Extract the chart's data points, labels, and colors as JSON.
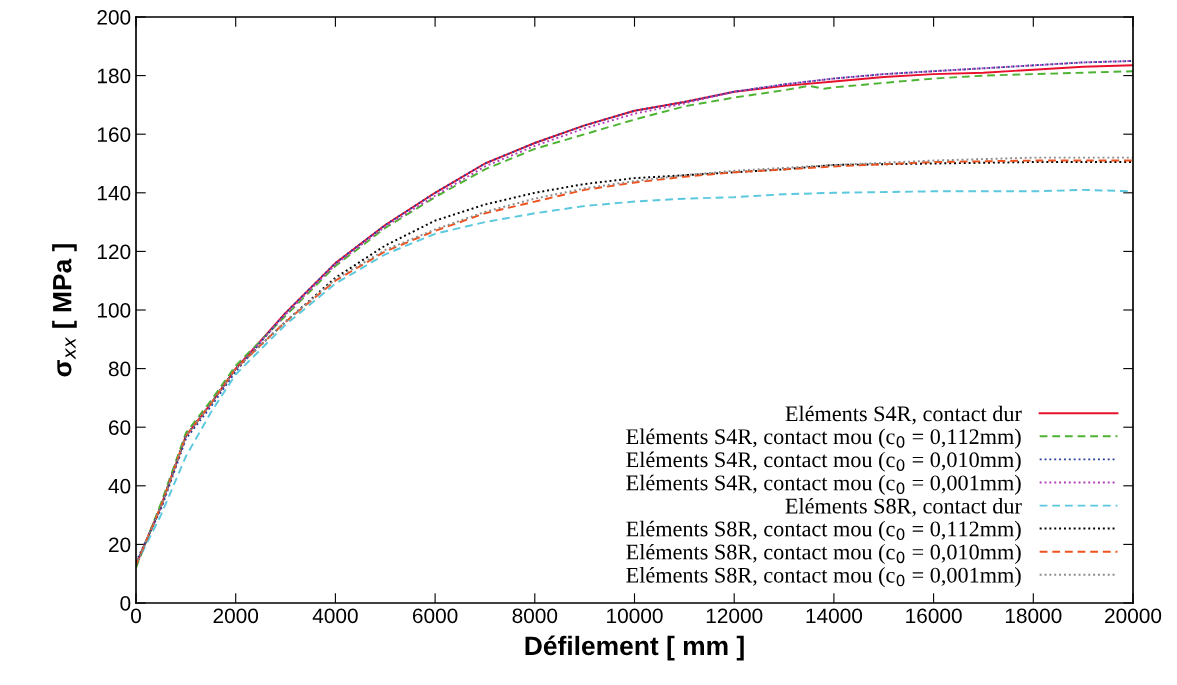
{
  "chart_data": {
    "type": "line",
    "xlabel": "Défilement [ mm ]",
    "ylabel": "σ$_{xx}$ [ MPa ]",
    "xlim": [
      0,
      20000
    ],
    "xticks": [
      0,
      2000,
      4000,
      6000,
      8000,
      10000,
      12000,
      14000,
      16000,
      18000,
      20000
    ],
    "ylim": [
      0,
      200
    ],
    "yticks": [
      0,
      20,
      40,
      60,
      80,
      100,
      120,
      140,
      160,
      180,
      200
    ],
    "grid": false,
    "legend": "bottom right",
    "marker": "none",
    "series": [
      {
        "name": "Eléments S4R, contact dur",
        "color": "#e8112d",
        "line_style": "solid",
        "x": [
          0,
          500,
          1000,
          1500,
          2000,
          3000,
          4000,
          5000,
          6000,
          7000,
          8000,
          9000,
          10000,
          11000,
          12000,
          13000,
          14000,
          15000,
          16000,
          17000,
          18000,
          19000,
          20000
        ],
        "values": [
          13,
          33,
          57,
          68,
          80,
          99,
          116,
          129,
          140,
          150,
          157,
          163,
          168,
          171,
          174.5,
          176.5,
          178,
          179.5,
          180.5,
          181,
          182,
          183,
          183.5
        ]
      },
      {
        "name": "Eléments S4R, contact mou (c$_{0}$ = 0,112mm)",
        "color": "#4eb333",
        "line_style": "dashed",
        "x": [
          0,
          500,
          1000,
          1500,
          2000,
          3000,
          4000,
          5000,
          6000,
          7000,
          8000,
          9000,
          10000,
          11000,
          12000,
          13000,
          13500,
          13800,
          14000,
          15000,
          16000,
          17000,
          18000,
          19000,
          20000
        ],
        "values": [
          12,
          34,
          58,
          69,
          81,
          98,
          115,
          128,
          138.5,
          148,
          155,
          160,
          165,
          169.5,
          172.5,
          175,
          176.5,
          175.5,
          176,
          177.5,
          179,
          180,
          180.5,
          181,
          181.5
        ]
      },
      {
        "name": "Eléments S4R, contact mou (c$_{0}$ = 0,010mm)",
        "color": "#2b3f9e",
        "line_style": "dotted",
        "x": [
          0,
          500,
          1000,
          1500,
          2000,
          3000,
          4000,
          5000,
          6000,
          7000,
          8000,
          9000,
          10000,
          11000,
          12000,
          13000,
          14000,
          15000,
          16000,
          17000,
          18000,
          19000,
          20000
        ],
        "values": [
          14,
          32,
          56,
          67,
          79,
          99,
          116,
          129,
          140,
          150,
          157,
          163,
          168,
          171,
          174.5,
          177,
          179,
          180.5,
          181.5,
          182.5,
          183.5,
          184.5,
          185
        ]
      },
      {
        "name": "Eléments S4R, contact mou (c$_{0}$ = 0,001mm)",
        "color": "#b33fb8",
        "line_style": "dotted",
        "x": [
          0,
          500,
          1000,
          1500,
          2000,
          3000,
          4000,
          5000,
          6000,
          7000,
          8000,
          9000,
          10000,
          11000,
          12000,
          13000,
          14000,
          15000,
          16000,
          17000,
          18000,
          19000,
          20000
        ],
        "values": [
          13,
          33,
          57,
          68,
          80,
          98.5,
          115.5,
          128.5,
          139,
          149,
          156,
          162,
          167,
          170.5,
          174.5,
          177,
          179,
          180.5,
          181.5,
          182.5,
          183.5,
          184.5,
          185
        ]
      },
      {
        "name": "Eléments S8R, contact dur",
        "color": "#5bc8de",
        "line_style": "dashed",
        "x": [
          0,
          500,
          1000,
          1500,
          2000,
          3000,
          4000,
          5000,
          6000,
          7000,
          8000,
          9000,
          10000,
          11000,
          12000,
          13000,
          14000,
          16000,
          18000,
          19000,
          20000
        ],
        "values": [
          13,
          30,
          50,
          65,
          78,
          95,
          109,
          119,
          126,
          130,
          133,
          135.5,
          137,
          138,
          138.5,
          139.5,
          140,
          140.5,
          140.5,
          141,
          140.5
        ]
      },
      {
        "name": "Eléments S8R, contact mou (c$_{0}$ = 0,112mm)",
        "color": "#000000",
        "line_style": "dotted",
        "x": [
          0,
          500,
          1000,
          1500,
          2000,
          3000,
          4000,
          5000,
          6000,
          7000,
          8000,
          9000,
          10000,
          11000,
          12000,
          13000,
          14000,
          16000,
          18000,
          20000
        ],
        "values": [
          13,
          33,
          57,
          68,
          80,
          96,
          111,
          122,
          130.5,
          136,
          140,
          143,
          145,
          146,
          147,
          148,
          149.5,
          150,
          150.5,
          150.5
        ]
      },
      {
        "name": "Eléments S8R, contact mou (c$_{0}$ = 0,010mm)",
        "color": "#f0521e",
        "line_style": "dashed",
        "x": [
          0,
          500,
          1000,
          1500,
          2000,
          3000,
          4000,
          5000,
          6000,
          7000,
          8000,
          9000,
          10000,
          11000,
          12000,
          14000,
          16000,
          18000,
          20000
        ],
        "values": [
          13,
          33,
          57,
          68,
          80,
          96,
          110,
          120,
          127,
          133,
          137,
          141,
          143.5,
          145.5,
          147,
          149,
          150.5,
          151,
          151
        ]
      },
      {
        "name": "Eléments S8R, contact mou (c$_{0}$ = 0,001mm)",
        "color": "#8c8c8c",
        "line_style": "dotted",
        "x": [
          0,
          500,
          1000,
          1500,
          2000,
          3000,
          4000,
          5000,
          6000,
          7000,
          8000,
          9000,
          10000,
          11000,
          12000,
          14000,
          16000,
          18000,
          20000
        ],
        "values": [
          13,
          33,
          57,
          68,
          80,
          96,
          110.5,
          120.5,
          127.5,
          133.5,
          138,
          141.5,
          144,
          146,
          147.5,
          149.5,
          151,
          152,
          152
        ]
      }
    ]
  }
}
